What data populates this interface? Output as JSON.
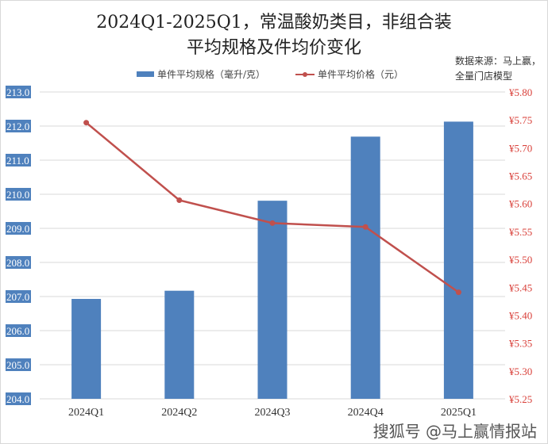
{
  "chart_data": {
    "type": "bar+line",
    "title_line1": "2024Q1-2025Q1，常温酸奶类目，非组合装",
    "title_line2": "平均规格及件均价变化",
    "categories": [
      "2024Q1",
      "2024Q2",
      "2024Q3",
      "2024Q4",
      "2025Q1"
    ],
    "series": [
      {
        "name": "单件平均规格（毫升/克）",
        "type": "bar",
        "axis": "left",
        "color": "#4f81bd",
        "values": [
          206.93,
          207.17,
          209.81,
          211.69,
          212.13
        ]
      },
      {
        "name": "单件平均价格（元）",
        "type": "line",
        "axis": "right",
        "color": "#c0504d",
        "values": [
          5.745,
          5.606,
          5.565,
          5.558,
          5.441
        ]
      }
    ],
    "y_left": {
      "min": 204,
      "max": 213,
      "ticks": [
        "204.0",
        "205.0",
        "206.0",
        "207.0",
        "208.0",
        "209.0",
        "210.0",
        "211.0",
        "212.0",
        "213.0"
      ]
    },
    "y_right": {
      "min": 5.25,
      "max": 5.8,
      "ticks": [
        "¥5.25",
        "¥5.30",
        "¥5.35",
        "¥5.40",
        "¥5.45",
        "¥5.50",
        "¥5.55",
        "¥5.60",
        "¥5.65",
        "¥5.70",
        "¥5.75",
        "¥5.80"
      ]
    },
    "grid": true,
    "legend_position": "top"
  },
  "source_note": [
    "数据来源：马上赢，",
    "全量门店模型"
  ],
  "watermark": "搜狐号 @马上赢情报站"
}
